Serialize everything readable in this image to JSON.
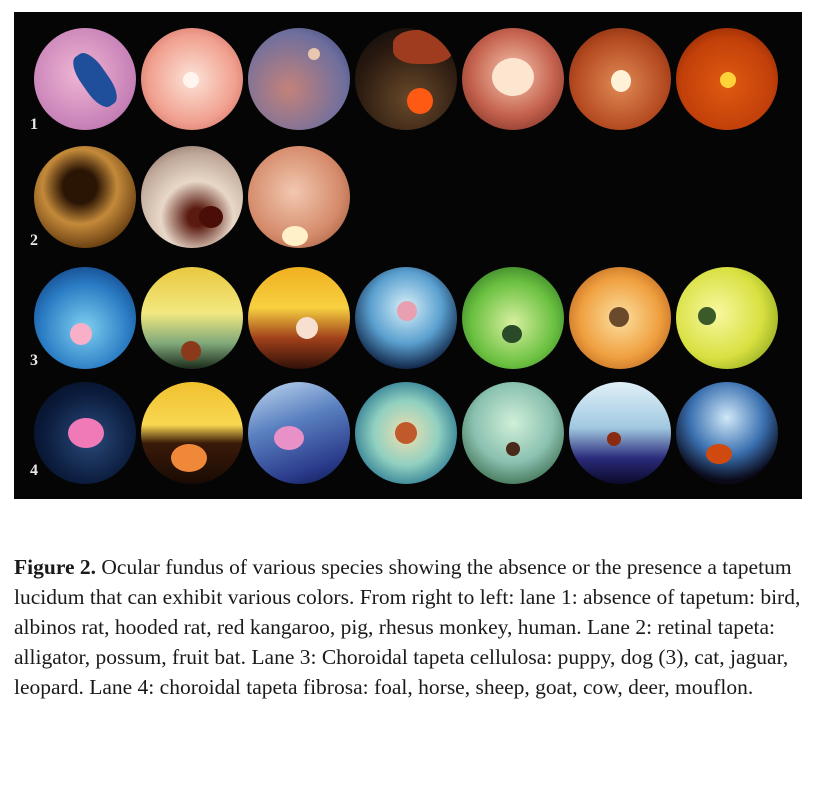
{
  "figure": {
    "lanes": [
      {
        "number": "1",
        "species": [
          "bird",
          "albinos rat",
          "hooded rat",
          "red kangaroo",
          "pig",
          "rhesus monkey",
          "human"
        ]
      },
      {
        "number": "2",
        "species": [
          "alligator",
          "possum",
          "fruit bat"
        ]
      },
      {
        "number": "3",
        "species": [
          "puppy",
          "dog",
          "dog",
          "dog",
          "cat",
          "jaguar",
          "leopard"
        ]
      },
      {
        "number": "4",
        "species": [
          "foal",
          "horse",
          "sheep",
          "goat",
          "cow",
          "deer",
          "mouflon"
        ]
      }
    ]
  },
  "caption": {
    "label": "Figure 2.",
    "text": " Ocular fundus of various species showing the absence or the presence a tapetum lucidum that can exhibit various colors. From right to left: lane 1: absence of tapetum: bird, albinos rat, hooded rat, red kangaroo, pig, rhesus monkey, human. Lane 2: retinal tapeta: alligator, possum, fruit bat. Lane 3: Choroidal tapeta cellulosa: puppy, dog (3), cat, jaguar, leopard. Lane 4: choroidal tapeta fibrosa: foal, horse, sheep, goat, cow, deer, mouflon."
  }
}
